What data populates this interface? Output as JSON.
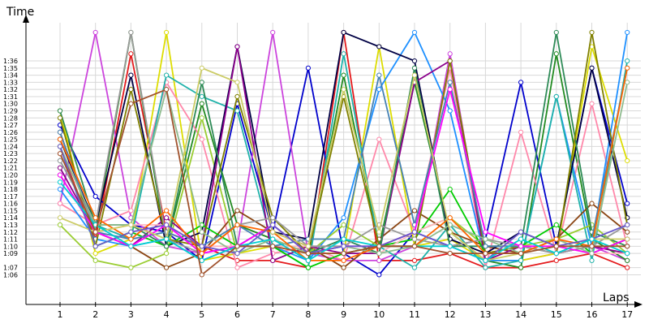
{
  "chart_data": {
    "type": "line",
    "ylabel": "Time",
    "xlabel": "Laps",
    "x": [
      1,
      2,
      3,
      4,
      5,
      6,
      7,
      8,
      9,
      10,
      11,
      12,
      13,
      14,
      15,
      16,
      17
    ],
    "x_tick_labels": [
      "1",
      "2",
      "3",
      "4",
      "5",
      "6",
      "7",
      "8",
      "9",
      "10",
      "11",
      "12",
      "13",
      "14",
      "15",
      "16",
      "17"
    ],
    "y_tick_labels": [
      "1:06",
      "1:07",
      "1:09",
      "1:10",
      "1:11",
      "1:12",
      "1:13",
      "1:14",
      "1:15",
      "1:16",
      "1:17",
      "1:18",
      "1:19",
      "1:20",
      "1:21",
      "1:22",
      "1:23",
      "1:24",
      "1:25",
      "1:26",
      "1:27",
      "1:28",
      "1:29",
      "1:30",
      "1:31",
      "1:32",
      "1:33",
      "1:34",
      "1:35",
      "1:36"
    ],
    "y_unit": "seconds",
    "ylim": [
      64,
      99
    ],
    "grid": true,
    "series": [
      {
        "color": "#e41a1c",
        "values": [
          84,
          71,
          97,
          72,
          70,
          68,
          68,
          67,
          100,
          68,
          68,
          69,
          67,
          67,
          68,
          69,
          67
        ]
      },
      {
        "color": "#0000cc",
        "values": [
          87,
          77,
          73,
          72,
          68,
          90,
          72,
          95,
          69,
          66,
          72,
          70,
          71,
          93,
          70,
          95,
          76
        ]
      },
      {
        "color": "#cc44dd",
        "values": [
          76,
          100,
          74,
          70,
          69,
          70,
          100,
          69,
          68,
          68,
          70,
          97,
          68,
          68,
          69,
          70,
          68
        ]
      },
      {
        "color": "#228b22",
        "values": [
          80,
          72,
          100,
          70,
          90,
          73,
          71,
          68,
          94,
          70,
          93,
          72,
          68,
          67,
          97,
          71,
          68
        ]
      },
      {
        "color": "#dddd00",
        "values": [
          89,
          69,
          71,
          100,
          68,
          69,
          70,
          69,
          69,
          98,
          70,
          71,
          68,
          68,
          69,
          98,
          82
        ]
      },
      {
        "color": "#ff88aa",
        "values": [
          76,
          73,
          75,
          93,
          85,
          67,
          69,
          70,
          68,
          85,
          72,
          95,
          67,
          86,
          69,
          90,
          70
        ]
      },
      {
        "color": "#1e90ff",
        "values": [
          78,
          71,
          70,
          71,
          68,
          70,
          70,
          68,
          74,
          92,
          100,
          89,
          68,
          68,
          91,
          70,
          100
        ]
      },
      {
        "color": "#20b2aa",
        "values": [
          82,
          73,
          71,
          94,
          91,
          89,
          70,
          67,
          97,
          70,
          67,
          73,
          67,
          68,
          91,
          68,
          96
        ]
      },
      {
        "color": "#8b4513",
        "values": [
          86,
          72,
          70,
          67,
          69,
          75,
          72,
          70,
          67,
          71,
          75,
          72,
          70,
          69,
          71,
          76,
          72
        ]
      },
      {
        "color": "#9acd32",
        "values": [
          73,
          68,
          67,
          69,
          88,
          69,
          71,
          69,
          73,
          70,
          72,
          74,
          70,
          70,
          71,
          73,
          69
        ]
      },
      {
        "color": "#000044",
        "values": [
          85,
          73,
          94,
          70,
          72,
          98,
          72,
          71,
          100,
          98,
          96,
          71,
          69,
          72,
          70,
          95,
          74
        ]
      },
      {
        "color": "#8b008b",
        "values": [
          81,
          72,
          70,
          74,
          70,
          98,
          68,
          70,
          69,
          69,
          93,
          96,
          68,
          70,
          69,
          70,
          69
        ]
      },
      {
        "color": "#00cc00",
        "values": [
          84,
          70,
          72,
          70,
          73,
          70,
          70,
          67,
          69,
          70,
          71,
          78,
          69,
          70,
          73,
          69,
          71
        ]
      },
      {
        "color": "#ffb6c1",
        "values": [
          83,
          72,
          73,
          73,
          70,
          70,
          70,
          70,
          70,
          69,
          72,
          74,
          69,
          70,
          70,
          69,
          69
        ]
      },
      {
        "color": "#2e8b57",
        "values": [
          89,
          73,
          73,
          70,
          93,
          70,
          73,
          69,
          71,
          69,
          95,
          70,
          70,
          70,
          100,
          72,
          70
        ]
      },
      {
        "color": "#808000",
        "values": [
          88,
          70,
          92,
          71,
          70,
          91,
          74,
          69,
          91,
          70,
          70,
          96,
          69,
          70,
          69,
          100,
          73
        ]
      },
      {
        "color": "#4682b4",
        "values": [
          86,
          72,
          71,
          72,
          70,
          73,
          70,
          71,
          71,
          94,
          73,
          93,
          70,
          70,
          69,
          71,
          95
        ]
      },
      {
        "color": "#999999",
        "values": [
          82,
          73,
          100,
          71,
          69,
          73,
          74,
          70,
          70,
          73,
          71,
          70,
          71,
          70,
          69,
          70,
          73
        ]
      },
      {
        "color": "#ff00ff",
        "values": [
          80,
          72,
          70,
          73,
          69,
          70,
          73,
          69,
          70,
          70,
          72,
          92,
          72,
          70,
          70,
          69,
          71
        ]
      },
      {
        "color": "#8fbc8f",
        "values": [
          84,
          73,
          73,
          92,
          72,
          69,
          71,
          69,
          70,
          69,
          70,
          73,
          71,
          69,
          71,
          69,
          93
        ]
      },
      {
        "color": "#ff6600",
        "values": [
          85,
          74,
          71,
          75,
          69,
          73,
          72,
          68,
          68,
          70,
          70,
          74,
          69,
          69,
          71,
          70,
          95
        ]
      },
      {
        "color": "#cccc66",
        "values": [
          74,
          72,
          73,
          71,
          95,
          93,
          72,
          70,
          92,
          72,
          94,
          72,
          68,
          69,
          70,
          71,
          71
        ]
      },
      {
        "color": "#6a5acd",
        "values": [
          84,
          70,
          72,
          73,
          70,
          69,
          73,
          69,
          70,
          70,
          72,
          70,
          68,
          72,
          70,
          71,
          73
        ]
      },
      {
        "color": "#00ced1",
        "values": [
          79,
          73,
          70,
          71,
          68,
          70,
          71,
          68,
          71,
          70,
          70,
          70,
          68,
          71,
          69,
          71,
          69
        ]
      },
      {
        "color": "#a0522d",
        "values": [
          83,
          72,
          90,
          92,
          66,
          70,
          70,
          69,
          69,
          70,
          70,
          69,
          69,
          69,
          70,
          70,
          70
        ]
      }
    ]
  }
}
